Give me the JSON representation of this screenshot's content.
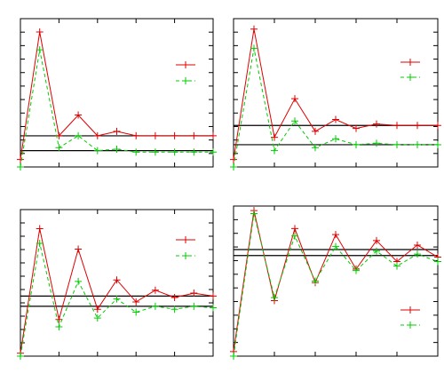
{
  "colors": {
    "series_a": "#e00000",
    "series_b": "#00cc00",
    "reference": "#000000",
    "frame": "#000000",
    "background": "#ffffff"
  },
  "chart_data": [
    {
      "type": "line",
      "grid": false,
      "legend_position": "right",
      "x": [
        0,
        1,
        2,
        3,
        4,
        5,
        6,
        7,
        8,
        9,
        10
      ],
      "ylim": [
        0,
        1
      ],
      "series": [
        {
          "style": "solid",
          "color": "series_a",
          "values": [
            0.05,
            0.91,
            0.21,
            0.35,
            0.21,
            0.24,
            0.21,
            0.21,
            0.21,
            0.21,
            0.21
          ]
        },
        {
          "style": "dashed",
          "color": "series_b",
          "values": [
            0.0,
            0.79,
            0.13,
            0.21,
            0.11,
            0.12,
            0.1,
            0.1,
            0.1,
            0.1,
            0.1
          ]
        }
      ],
      "reference_lines": [
        0.21,
        0.11
      ]
    },
    {
      "type": "line",
      "grid": false,
      "legend_position": "right",
      "x": [
        0,
        1,
        2,
        3,
        4,
        5,
        6,
        7,
        8,
        9,
        10
      ],
      "ylim": [
        0,
        1
      ],
      "series": [
        {
          "style": "solid",
          "color": "series_a",
          "values": [
            0.05,
            0.93,
            0.2,
            0.46,
            0.24,
            0.32,
            0.26,
            0.29,
            0.28,
            0.28,
            0.28
          ]
        },
        {
          "style": "dashed",
          "color": "series_b",
          "values": [
            0.0,
            0.8,
            0.11,
            0.31,
            0.13,
            0.19,
            0.15,
            0.16,
            0.15,
            0.15,
            0.15
          ]
        }
      ],
      "reference_lines": [
        0.28,
        0.15
      ]
    },
    {
      "type": "line",
      "grid": false,
      "legend_position": "right",
      "x": [
        0,
        1,
        2,
        3,
        4,
        5,
        6,
        7,
        8,
        9,
        10
      ],
      "ylim": [
        0,
        1
      ],
      "series": [
        {
          "style": "solid",
          "color": "series_a",
          "values": [
            0.02,
            0.87,
            0.25,
            0.73,
            0.32,
            0.52,
            0.37,
            0.45,
            0.4,
            0.43,
            0.41
          ]
        },
        {
          "style": "dashed",
          "color": "series_b",
          "values": [
            0.0,
            0.77,
            0.2,
            0.51,
            0.26,
            0.39,
            0.3,
            0.34,
            0.32,
            0.34,
            0.33
          ]
        }
      ],
      "reference_lines": [
        0.41,
        0.34
      ]
    },
    {
      "type": "line",
      "grid": false,
      "legend_position": "bottom-right",
      "x": [
        0,
        1,
        2,
        3,
        4,
        5,
        6,
        7,
        8,
        9,
        10
      ],
      "ylim": [
        0,
        1
      ],
      "series": [
        {
          "style": "solid",
          "color": "series_a",
          "values": [
            0.03,
            0.97,
            0.37,
            0.85,
            0.49,
            0.81,
            0.58,
            0.77,
            0.63,
            0.74,
            0.66
          ]
        },
        {
          "style": "dashed",
          "color": "series_b",
          "values": [
            0.0,
            0.95,
            0.39,
            0.8,
            0.5,
            0.73,
            0.57,
            0.7,
            0.6,
            0.68,
            0.63
          ]
        }
      ],
      "reference_lines": [
        0.71,
        0.67
      ]
    }
  ]
}
